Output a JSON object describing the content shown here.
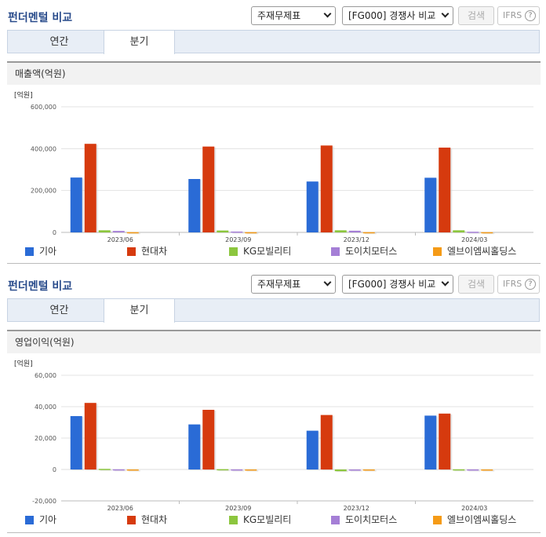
{
  "sections": [
    {
      "title": "펀더멘털 비교",
      "select1": "주재무제표",
      "select2": "[FG000] 경쟁사 비교",
      "search_label": "검색",
      "ifrs_label": "IFRS",
      "help_glyph": "?",
      "tabs": [
        "연간",
        "분기"
      ],
      "active_tab": "분기",
      "panel_title": "매출액(억원)"
    },
    {
      "title": "펀더멘털 비교",
      "select1": "주재무제표",
      "select2": "[FG000] 경쟁사 비교",
      "search_label": "검색",
      "ifrs_label": "IFRS",
      "help_glyph": "?",
      "tabs": [
        "연간",
        "분기"
      ],
      "active_tab": "분기",
      "panel_title": "영업이익(억원)"
    }
  ],
  "chart_data": [
    {
      "type": "bar",
      "unit_label": "[억원]",
      "categories": [
        "2023/06",
        "2023/09",
        "2023/12",
        "2024/03"
      ],
      "ylim": [
        0,
        600000
      ],
      "yticks": [
        0,
        200000,
        400000,
        600000
      ],
      "ytick_labels": [
        "0",
        "200,000",
        "400,000",
        "600,000"
      ],
      "grid": true,
      "legend_position": "bottom",
      "series": [
        {
          "name": "기아",
          "color": "#2a6bd6",
          "values": [
            262000,
            255000,
            243000,
            261000
          ]
        },
        {
          "name": "현대차",
          "color": "#d63a0e",
          "values": [
            423000,
            410000,
            415000,
            405000
          ]
        },
        {
          "name": "KG모빌리티",
          "color": "#8cc63e",
          "values": [
            10000,
            9000,
            10000,
            10000
          ]
        },
        {
          "name": "도이치모터스",
          "color": "#a57fd6",
          "values": [
            7000,
            4000,
            8000,
            3000
          ]
        },
        {
          "name": "엘브이엠씨홀딩스",
          "color": "#f59b17",
          "values": [
            1000,
            1000,
            1000,
            1000
          ]
        }
      ]
    },
    {
      "type": "bar",
      "unit_label": "[억원]",
      "categories": [
        "2023/06",
        "2023/09",
        "2023/12",
        "2024/03"
      ],
      "ylim": [
        -20000,
        60000
      ],
      "yticks": [
        -20000,
        0,
        20000,
        40000,
        60000
      ],
      "ytick_labels": [
        "-20,000",
        "0",
        "20,000",
        "40,000",
        "60,000"
      ],
      "grid": true,
      "legend_position": "bottom",
      "series": [
        {
          "name": "기아",
          "color": "#2a6bd6",
          "values": [
            34000,
            28700,
            24700,
            34300
          ]
        },
        {
          "name": "현대차",
          "color": "#d63a0e",
          "values": [
            42400,
            38000,
            34700,
            35600
          ]
        },
        {
          "name": "KG모빌리티",
          "color": "#8cc63e",
          "values": [
            400,
            200,
            -1100,
            100
          ]
        },
        {
          "name": "도이치모터스",
          "color": "#a57fd6",
          "values": [
            100,
            50,
            -100,
            50
          ]
        },
        {
          "name": "엘브이엠씨홀딩스",
          "color": "#f59b17",
          "values": [
            20,
            20,
            20,
            20
          ]
        }
      ]
    }
  ]
}
